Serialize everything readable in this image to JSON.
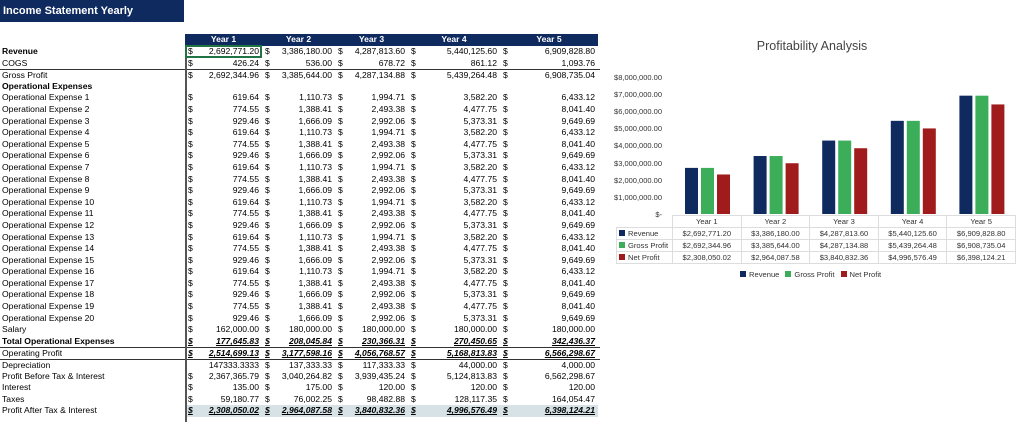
{
  "title": "Income Statement Yearly",
  "years": [
    "Year 1",
    "Year 2",
    "Year 3",
    "Year 4",
    "Year 5"
  ],
  "rows": [
    {
      "label": "Revenue",
      "style": "bold",
      "cells": [
        [
          "$",
          "2,692,771.20"
        ],
        [
          "$",
          "3,386,180.00"
        ],
        [
          "$",
          "4,287,813.60"
        ],
        [
          "$",
          "5,440,125.60"
        ],
        [
          "$",
          "6,909,828.80"
        ]
      ]
    },
    {
      "label": "COGS",
      "cells": [
        [
          "$",
          "426.24"
        ],
        [
          "$",
          "536.00"
        ],
        [
          "$",
          "678.72"
        ],
        [
          "$",
          "861.12"
        ],
        [
          "$",
          "1,093.76"
        ]
      ]
    },
    {
      "label": "Gross Profit",
      "style": "top",
      "cells": [
        [
          "$",
          "2,692,344.96"
        ],
        [
          "$",
          "3,385,644.00"
        ],
        [
          "$",
          "4,287,134.88"
        ],
        [
          "$",
          "5,439,264.48"
        ],
        [
          "$",
          "6,908,735.04"
        ]
      ]
    },
    {
      "label": "Operational Expenses",
      "style": "bold",
      "cells": []
    },
    {
      "label": "Operational Expense 1",
      "cells": [
        [
          "$",
          "619.64"
        ],
        [
          "$",
          "1,110.73"
        ],
        [
          "$",
          "1,994.71"
        ],
        [
          "$",
          "3,582.20"
        ],
        [
          "$",
          "6,433.12"
        ]
      ]
    },
    {
      "label": "Operational Expense 2",
      "cells": [
        [
          "$",
          "774.55"
        ],
        [
          "$",
          "1,388.41"
        ],
        [
          "$",
          "2,493.38"
        ],
        [
          "$",
          "4,477.75"
        ],
        [
          "$",
          "8,041.40"
        ]
      ]
    },
    {
      "label": "Operational Expense 3",
      "cells": [
        [
          "$",
          "929.46"
        ],
        [
          "$",
          "1,666.09"
        ],
        [
          "$",
          "2,992.06"
        ],
        [
          "$",
          "5,373.31"
        ],
        [
          "$",
          "9,649.69"
        ]
      ]
    },
    {
      "label": "Operational Expense 4",
      "cells": [
        [
          "$",
          "619.64"
        ],
        [
          "$",
          "1,110.73"
        ],
        [
          "$",
          "1,994.71"
        ],
        [
          "$",
          "3,582.20"
        ],
        [
          "$",
          "6,433.12"
        ]
      ]
    },
    {
      "label": "Operational Expense 5",
      "cells": [
        [
          "$",
          "774.55"
        ],
        [
          "$",
          "1,388.41"
        ],
        [
          "$",
          "2,493.38"
        ],
        [
          "$",
          "4,477.75"
        ],
        [
          "$",
          "8,041.40"
        ]
      ]
    },
    {
      "label": "Operational Expense 6",
      "cells": [
        [
          "$",
          "929.46"
        ],
        [
          "$",
          "1,666.09"
        ],
        [
          "$",
          "2,992.06"
        ],
        [
          "$",
          "5,373.31"
        ],
        [
          "$",
          "9,649.69"
        ]
      ]
    },
    {
      "label": "Operational Expense 7",
      "cells": [
        [
          "$",
          "619.64"
        ],
        [
          "$",
          "1,110.73"
        ],
        [
          "$",
          "1,994.71"
        ],
        [
          "$",
          "3,582.20"
        ],
        [
          "$",
          "6,433.12"
        ]
      ]
    },
    {
      "label": "Operational Expense 8",
      "cells": [
        [
          "$",
          "774.55"
        ],
        [
          "$",
          "1,388.41"
        ],
        [
          "$",
          "2,493.38"
        ],
        [
          "$",
          "4,477.75"
        ],
        [
          "$",
          "8,041.40"
        ]
      ]
    },
    {
      "label": "Operational Expense 9",
      "cells": [
        [
          "$",
          "929.46"
        ],
        [
          "$",
          "1,666.09"
        ],
        [
          "$",
          "2,992.06"
        ],
        [
          "$",
          "5,373.31"
        ],
        [
          "$",
          "9,649.69"
        ]
      ]
    },
    {
      "label": "Operational Expense 10",
      "cells": [
        [
          "$",
          "619.64"
        ],
        [
          "$",
          "1,110.73"
        ],
        [
          "$",
          "1,994.71"
        ],
        [
          "$",
          "3,582.20"
        ],
        [
          "$",
          "6,433.12"
        ]
      ]
    },
    {
      "label": "Operational Expense 11",
      "cells": [
        [
          "$",
          "774.55"
        ],
        [
          "$",
          "1,388.41"
        ],
        [
          "$",
          "2,493.38"
        ],
        [
          "$",
          "4,477.75"
        ],
        [
          "$",
          "8,041.40"
        ]
      ]
    },
    {
      "label": "Operational Expense 12",
      "cells": [
        [
          "$",
          "929.46"
        ],
        [
          "$",
          "1,666.09"
        ],
        [
          "$",
          "2,992.06"
        ],
        [
          "$",
          "5,373.31"
        ],
        [
          "$",
          "9,649.69"
        ]
      ]
    },
    {
      "label": "Operational Expense 13",
      "cells": [
        [
          "$",
          "619.64"
        ],
        [
          "$",
          "1,110.73"
        ],
        [
          "$",
          "1,994.71"
        ],
        [
          "$",
          "3,582.20"
        ],
        [
          "$",
          "6,433.12"
        ]
      ]
    },
    {
      "label": "Operational Expense 14",
      "cells": [
        [
          "$",
          "774.55"
        ],
        [
          "$",
          "1,388.41"
        ],
        [
          "$",
          "2,493.38"
        ],
        [
          "$",
          "4,477.75"
        ],
        [
          "$",
          "8,041.40"
        ]
      ]
    },
    {
      "label": "Operational Expense 15",
      "cells": [
        [
          "$",
          "929.46"
        ],
        [
          "$",
          "1,666.09"
        ],
        [
          "$",
          "2,992.06"
        ],
        [
          "$",
          "5,373.31"
        ],
        [
          "$",
          "9,649.69"
        ]
      ]
    },
    {
      "label": "Operational Expense 16",
      "cells": [
        [
          "$",
          "619.64"
        ],
        [
          "$",
          "1,110.73"
        ],
        [
          "$",
          "1,994.71"
        ],
        [
          "$",
          "3,582.20"
        ],
        [
          "$",
          "6,433.12"
        ]
      ]
    },
    {
      "label": "Operational Expense 17",
      "cells": [
        [
          "$",
          "774.55"
        ],
        [
          "$",
          "1,388.41"
        ],
        [
          "$",
          "2,493.38"
        ],
        [
          "$",
          "4,477.75"
        ],
        [
          "$",
          "8,041.40"
        ]
      ]
    },
    {
      "label": "Operational Expense 18",
      "cells": [
        [
          "$",
          "929.46"
        ],
        [
          "$",
          "1,666.09"
        ],
        [
          "$",
          "2,992.06"
        ],
        [
          "$",
          "5,373.31"
        ],
        [
          "$",
          "9,649.69"
        ]
      ]
    },
    {
      "label": "Operational Expense 19",
      "cells": [
        [
          "$",
          "774.55"
        ],
        [
          "$",
          "1,388.41"
        ],
        [
          "$",
          "2,493.38"
        ],
        [
          "$",
          "4,477.75"
        ],
        [
          "$",
          "8,041.40"
        ]
      ]
    },
    {
      "label": "Operational Expense 20",
      "cells": [
        [
          "$",
          "929.46"
        ],
        [
          "$",
          "1,666.09"
        ],
        [
          "$",
          "2,992.06"
        ],
        [
          "$",
          "5,373.31"
        ],
        [
          "$",
          "9,649.69"
        ]
      ]
    },
    {
      "label": "Salary",
      "cells": [
        [
          "$",
          "162,000.00"
        ],
        [
          "$",
          "180,000.00"
        ],
        [
          "$",
          "180,000.00"
        ],
        [
          "$",
          "180,000.00"
        ],
        [
          "$",
          "180,000.00"
        ]
      ]
    },
    {
      "label": "Total Operational Expenses",
      "style": "bold ul",
      "cells": [
        [
          "$",
          "177,645.83"
        ],
        [
          "$",
          "208,045.84"
        ],
        [
          "$",
          "230,366.31"
        ],
        [
          "$",
          "270,450.65"
        ],
        [
          "$",
          "342,436.37"
        ]
      ]
    },
    {
      "label": "Operating Profit",
      "style": "ital top",
      "cells": [
        [
          "$",
          "2,514,699.13"
        ],
        [
          "$",
          "3,177,598.16"
        ],
        [
          "$",
          "4,056,768.57"
        ],
        [
          "$",
          "5,168,813.83"
        ],
        [
          "$",
          "6,566,298.67"
        ]
      ]
    },
    {
      "label": "Depreciation",
      "style": "top",
      "cells": [
        [
          "",
          "147333.3333"
        ],
        [
          "$",
          "137,333.33"
        ],
        [
          "$",
          "117,333.33"
        ],
        [
          "$",
          "44,000.00"
        ],
        [
          "$",
          "4,000.00"
        ]
      ]
    },
    {
      "label": "Profit Before Tax & Interest",
      "cells": [
        [
          "$",
          "2,367,365.79"
        ],
        [
          "$",
          "3,040,264.82"
        ],
        [
          "$",
          "3,939,435.24"
        ],
        [
          "$",
          "5,124,813.83"
        ],
        [
          "$",
          "6,562,298.67"
        ]
      ]
    },
    {
      "label": "Interest",
      "cells": [
        [
          "$",
          "135.00"
        ],
        [
          "$",
          "175.00"
        ],
        [
          "$",
          "120.00"
        ],
        [
          "$",
          "120.00"
        ],
        [
          "$",
          "120.00"
        ]
      ]
    },
    {
      "label": "Taxes",
      "cells": [
        [
          "$",
          "59,180.77"
        ],
        [
          "$",
          "76,002.25"
        ],
        [
          "$",
          "98,482.88"
        ],
        [
          "$",
          "128,117.35"
        ],
        [
          "$",
          "164,054.47"
        ]
      ]
    },
    {
      "label": "Profit After Tax & Interest",
      "style": "ital shade",
      "cells": [
        [
          "$",
          "2,308,050.02"
        ],
        [
          "$",
          "2,964,087.58"
        ],
        [
          "$",
          "3,840,832.36"
        ],
        [
          "$",
          "4,996,576.49"
        ],
        [
          "$",
          "6,398,124.21"
        ]
      ]
    }
  ],
  "chart_data": {
    "type": "bar",
    "title": "Profitability Analysis",
    "categories": [
      "Year 1",
      "Year 2",
      "Year 3",
      "Year 4",
      "Year 5"
    ],
    "ylim": [
      0,
      8000000
    ],
    "ytick_labels": [
      "$8,000,000.00",
      "$7,000,000.00",
      "$6,000,000.00",
      "$5,000,000.00",
      "$4,000,000.00",
      "$3,000,000.00",
      "$2,000,000.00",
      "$1,000,000.00",
      "$-"
    ],
    "legend": "bottom",
    "series": [
      {
        "name": "Revenue",
        "color": "#0f2a5f",
        "values": [
          2692771.2,
          3386180.0,
          4287813.6,
          5440125.6,
          6909828.8
        ],
        "labels": [
          "$2,692,771.20",
          "$3,386,180.00",
          "$4,287,813.60",
          "$5,440,125.60",
          "$6,909,828.80"
        ]
      },
      {
        "name": "Gross Profit",
        "color": "#3cae5a",
        "values": [
          2692344.96,
          3385644.0,
          4287134.88,
          5439264.48,
          6908735.04
        ],
        "labels": [
          "$2,692,344.96",
          "$3,385,644.00",
          "$4,287,134.88",
          "$5,439,264.48",
          "$6,908,735.04"
        ]
      },
      {
        "name": "Net Profit",
        "color": "#a01c1c",
        "values": [
          2308050.02,
          2964087.58,
          3840832.36,
          4996576.49,
          6398124.21
        ],
        "labels": [
          "$2,308,050.02",
          "$2,964,087.58",
          "$3,840,832.36",
          "$4,996,576.49",
          "$6,398,124.21"
        ]
      }
    ]
  }
}
